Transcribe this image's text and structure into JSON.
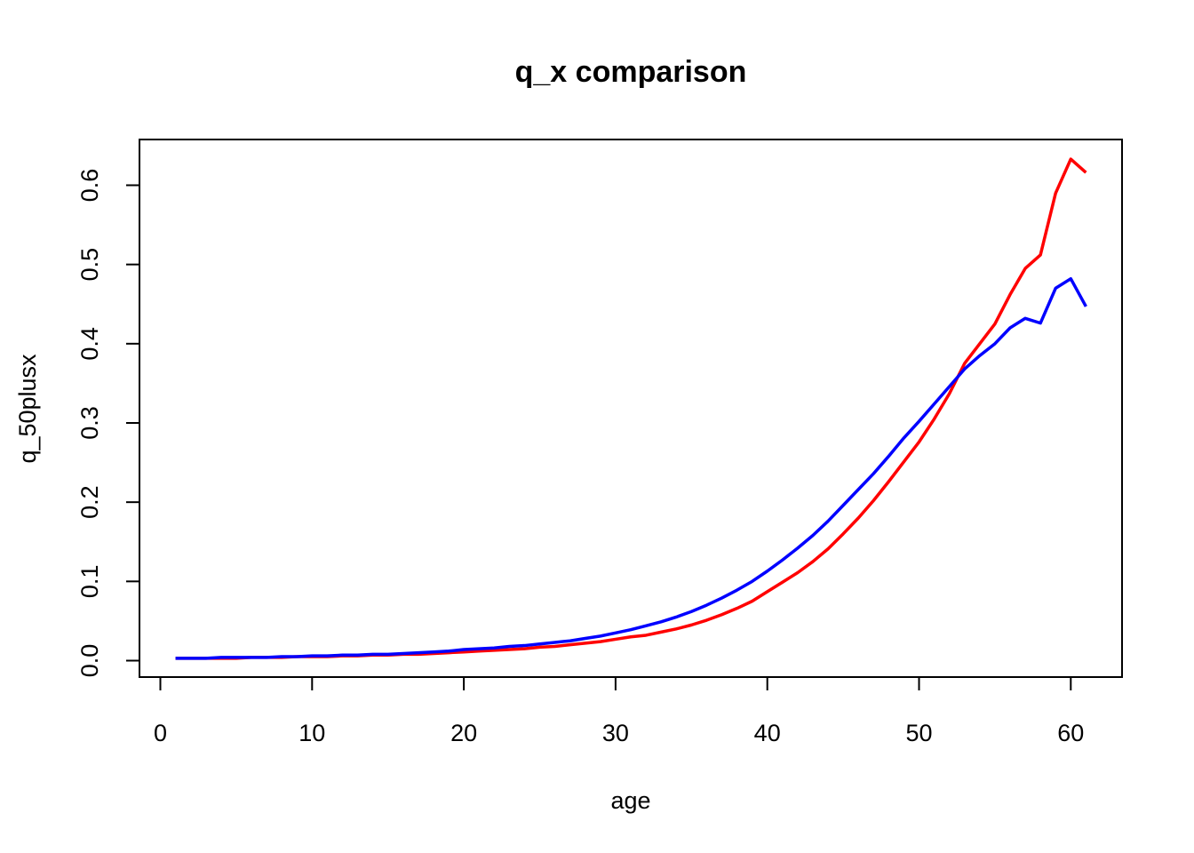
{
  "chart_data": {
    "type": "line",
    "title": "q_x comparison",
    "xlabel": "age",
    "ylabel": "q_50plusx",
    "xlim": [
      0,
      61
    ],
    "ylim": [
      0.0,
      0.63
    ],
    "xticks": [
      0,
      10,
      20,
      30,
      40,
      50,
      60
    ],
    "xtick_labels": [
      "0",
      "10",
      "20",
      "30",
      "40",
      "50",
      "60"
    ],
    "yticks": [
      0.0,
      0.1,
      0.2,
      0.3,
      0.4,
      0.5,
      0.6
    ],
    "ytick_labels": [
      "0.0",
      "0.1",
      "0.2",
      "0.3",
      "0.4",
      "0.5",
      "0.6"
    ],
    "grid": false,
    "legend": "none",
    "x": [
      1,
      2,
      3,
      4,
      5,
      6,
      7,
      8,
      9,
      10,
      11,
      12,
      13,
      14,
      15,
      16,
      17,
      18,
      19,
      20,
      21,
      22,
      23,
      24,
      25,
      26,
      27,
      28,
      29,
      30,
      31,
      32,
      33,
      34,
      35,
      36,
      37,
      38,
      39,
      40,
      41,
      42,
      43,
      44,
      45,
      46,
      47,
      48,
      49,
      50,
      51,
      52,
      53,
      54,
      55,
      56,
      57,
      58,
      59,
      60,
      61
    ],
    "series": [
      {
        "color": "#ff0000",
        "values": [
          0.003,
          0.003,
          0.003,
          0.003,
          0.003,
          0.004,
          0.004,
          0.004,
          0.005,
          0.005,
          0.005,
          0.006,
          0.006,
          0.007,
          0.007,
          0.008,
          0.008,
          0.009,
          0.01,
          0.011,
          0.012,
          0.013,
          0.014,
          0.015,
          0.017,
          0.018,
          0.02,
          0.022,
          0.024,
          0.027,
          0.03,
          0.032,
          0.036,
          0.04,
          0.045,
          0.051,
          0.058,
          0.066,
          0.075,
          0.087,
          0.099,
          0.111,
          0.125,
          0.141,
          0.16,
          0.18,
          0.202,
          0.226,
          0.251,
          0.276,
          0.305,
          0.337,
          0.375,
          0.4,
          0.425,
          0.462,
          0.495,
          0.512,
          0.59,
          0.633,
          0.616
        ]
      },
      {
        "color": "#0000ff",
        "values": [
          0.003,
          0.003,
          0.003,
          0.004,
          0.004,
          0.004,
          0.004,
          0.005,
          0.005,
          0.006,
          0.006,
          0.007,
          0.007,
          0.008,
          0.008,
          0.009,
          0.01,
          0.011,
          0.012,
          0.014,
          0.015,
          0.016,
          0.018,
          0.019,
          0.021,
          0.023,
          0.025,
          0.028,
          0.031,
          0.035,
          0.039,
          0.044,
          0.049,
          0.055,
          0.062,
          0.07,
          0.079,
          0.089,
          0.1,
          0.113,
          0.127,
          0.142,
          0.158,
          0.176,
          0.196,
          0.216,
          0.236,
          0.258,
          0.281,
          0.302,
          0.324,
          0.346,
          0.368,
          0.385,
          0.4,
          0.42,
          0.432,
          0.426,
          0.47,
          0.482,
          0.447
        ]
      }
    ]
  }
}
